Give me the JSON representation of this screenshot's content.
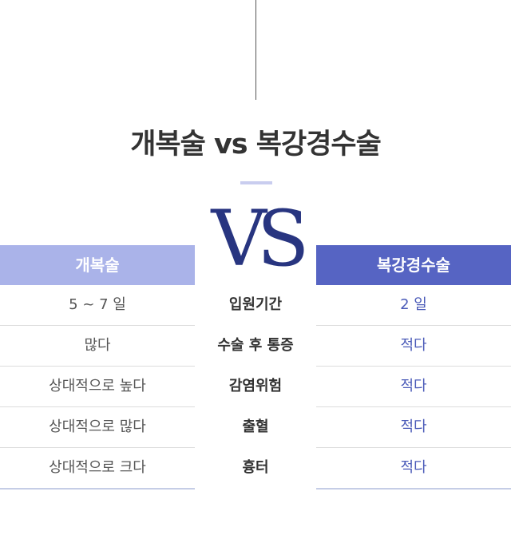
{
  "title": "개복술 vs 복강경수술",
  "vs_text": "VS",
  "left_column": {
    "header": "개복술",
    "values": [
      "5 ~ 7 일",
      "많다",
      "상대적으로 높다",
      "상대적으로 많다",
      "상대적으로 크다"
    ]
  },
  "criteria": [
    "입원기간",
    "수술 후 통증",
    "감염위험",
    "출혈",
    "흉터"
  ],
  "right_column": {
    "header": "복강경수술",
    "values": [
      "2 일",
      "적다",
      "적다",
      "적다",
      "적다"
    ]
  },
  "colors": {
    "left_header_bg": "#aab3e9",
    "right_header_bg": "#5664c3",
    "vs_color": "#283580",
    "right_value_text": "#4a5ab8"
  }
}
